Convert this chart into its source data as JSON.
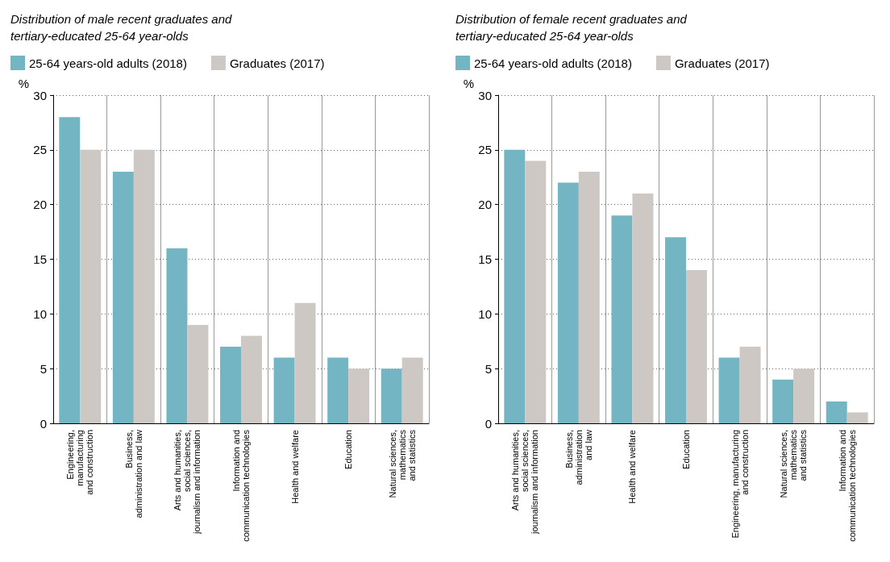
{
  "chart_data": [
    {
      "type": "bar",
      "title": "Distribution of male recent graduates and\ntertiary-educated 25-64 year-olds",
      "ylabel": "%",
      "categories": [
        "Engineering,\nmanufacturing\nand construction",
        "Business,\nadministration and law",
        "Arts and humanities,\nsocial sciences,\njournalism and information",
        "Information and\ncommunication technologies",
        "Health and welfare",
        "Education",
        "Natural sciences,\nmathematics\nand statistics"
      ],
      "series": [
        {
          "name": "25-64 years-old adults (2018)",
          "color": "#74b5c4",
          "values": [
            28,
            23,
            16,
            7,
            6,
            6,
            5
          ]
        },
        {
          "name": "Graduates (2017)",
          "color": "#cdc8c4",
          "values": [
            25,
            25,
            9,
            8,
            11,
            5,
            6
          ]
        }
      ],
      "ylim": [
        0,
        30
      ],
      "yticks": [
        0,
        5,
        10,
        15,
        20,
        25,
        30
      ],
      "grid": true,
      "legend": "top left"
    },
    {
      "type": "bar",
      "title": "Distribution of female recent graduates and\ntertiary-educated 25-64 year-olds",
      "ylabel": "%",
      "categories": [
        "Arts and humanities,\nsocial sciences,\njournalism and information",
        "Business,\nadministration\nand law",
        "Health and welfare",
        "Education",
        "Engineering, manufacturing\nand construction",
        "Natural sciences,\nmathematics\nand statistics",
        "Information and\ncommunication technologies"
      ],
      "series": [
        {
          "name": "25-64 years-old adults (2018)",
          "color": "#74b5c4",
          "values": [
            25,
            22,
            19,
            17,
            6,
            4,
            2
          ]
        },
        {
          "name": "Graduates (2017)",
          "color": "#cdc8c4",
          "values": [
            24,
            23,
            21,
            14,
            7,
            5,
            1
          ]
        }
      ],
      "ylim": [
        0,
        30
      ],
      "yticks": [
        0,
        5,
        10,
        15,
        20,
        25,
        30
      ],
      "grid": true,
      "legend": "top left"
    }
  ]
}
